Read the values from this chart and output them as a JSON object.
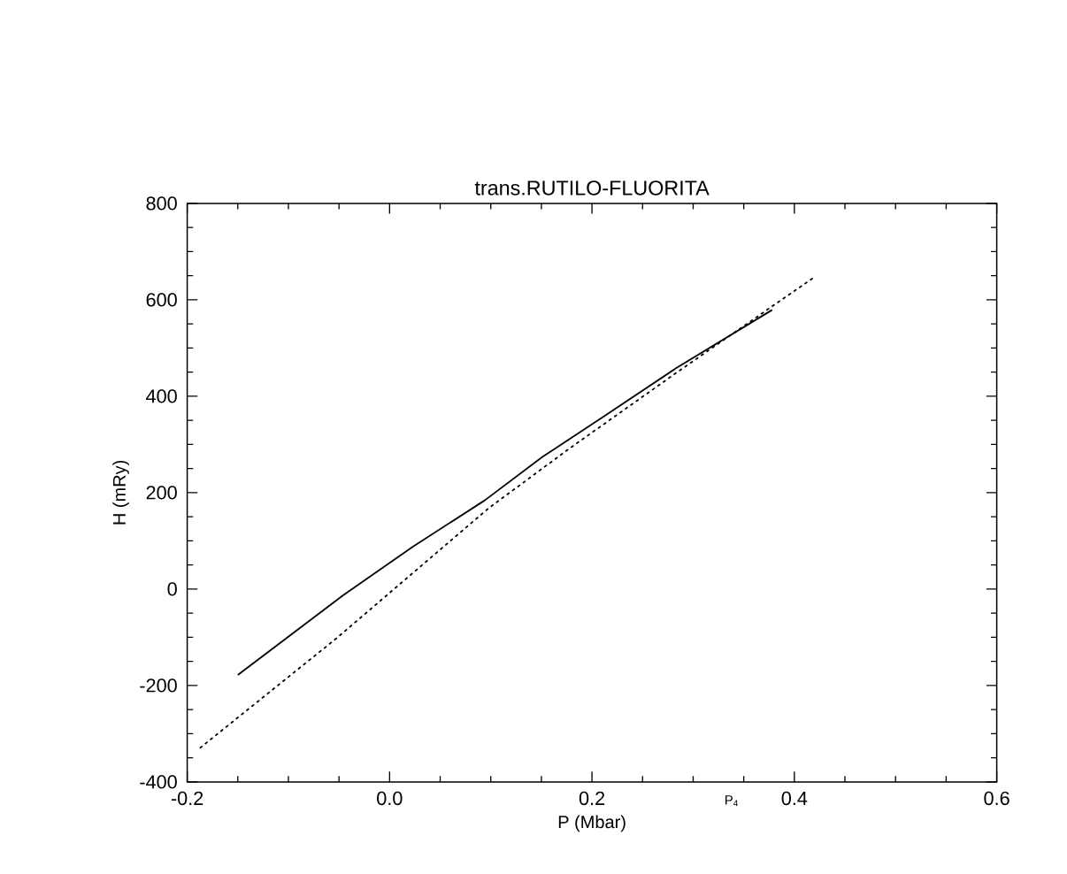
{
  "chart_data": {
    "type": "line",
    "title": "trans.RUTILO-FLUORITA",
    "xlabel": "P (Mbar)",
    "ylabel": "H (mRy)",
    "xlim": [
      -0.2,
      0.6
    ],
    "ylim": [
      -400,
      800
    ],
    "xticks": [
      {
        "value": -0.2,
        "label": "-0.2"
      },
      {
        "value": 0.0,
        "label": "0.0"
      },
      {
        "value": 0.2,
        "label": "0.2"
      },
      {
        "value": 0.4,
        "label": "0.4"
      },
      {
        "value": 0.6,
        "label": "0.6"
      }
    ],
    "yticks": [
      -400,
      -200,
      0,
      200,
      400,
      600,
      800
    ],
    "grid": false,
    "marker": "none",
    "annotations": [
      "P$_{4}$"
    ],
    "series": [
      {
        "color": "#000000",
        "line_style": "solid",
        "x": [
          -0.15,
          -0.046,
          0.023,
          0.094,
          0.151,
          0.213,
          0.283,
          0.378
        ],
        "values": [
          -178,
          -13,
          88,
          184,
          274,
          360,
          458,
          579
        ]
      },
      {
        "color": "#000000",
        "line_style": "dotted",
        "x": [
          -0.187,
          -0.053,
          0.098,
          0.178,
          0.287,
          0.419
        ],
        "values": [
          -329,
          -103,
          168,
          292,
          454,
          646
        ]
      }
    ]
  }
}
